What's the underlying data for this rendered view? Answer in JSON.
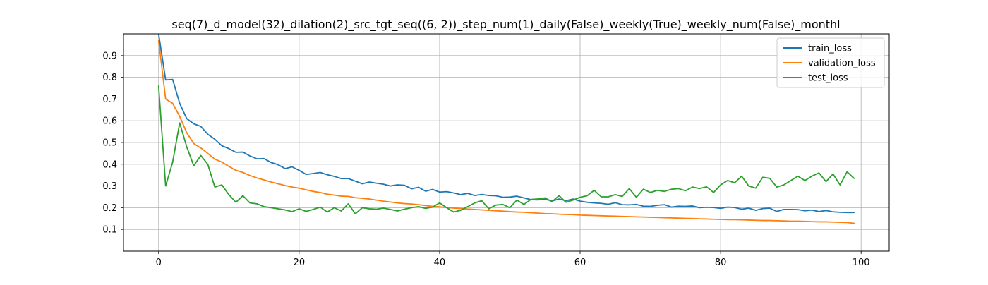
{
  "chart_data": {
    "type": "line",
    "title": "seq(7)_d_model(32)_dilation(2)_src_tgt_seq((6, 2))_step_num(1)_daily(False)_weekly(True)_weekly_num(False)_monthl",
    "xlabel": "",
    "ylabel": "",
    "xlim": [
      -5,
      104
    ],
    "ylim": [
      0,
      1.0
    ],
    "xticks": [
      0,
      20,
      40,
      60,
      80,
      100
    ],
    "yticks": [
      0.1,
      0.2,
      0.3,
      0.4,
      0.5,
      0.6,
      0.7,
      0.8,
      0.9
    ],
    "grid": true,
    "legend_position": "top-right",
    "colors": {
      "train_loss": "#1f77b4",
      "validation_loss": "#ff7f0e",
      "test_loss": "#2ca02c"
    },
    "series": [
      {
        "name": "train_loss",
        "x": [
          0,
          1,
          2,
          3,
          4,
          5,
          6,
          7,
          8,
          9,
          10,
          11,
          12,
          13,
          14,
          15,
          16,
          17,
          18,
          19,
          20,
          21,
          22,
          23,
          24,
          25,
          26,
          27,
          28,
          29,
          30,
          31,
          32,
          33,
          34,
          35,
          36,
          37,
          38,
          39,
          40,
          41,
          42,
          43,
          44,
          45,
          46,
          47,
          48,
          49,
          50,
          51,
          52,
          53,
          54,
          55,
          56,
          57,
          58,
          59,
          60,
          61,
          62,
          63,
          64,
          65,
          66,
          67,
          68,
          69,
          70,
          71,
          72,
          73,
          74,
          75,
          76,
          77,
          78,
          79,
          80,
          81,
          82,
          83,
          84,
          85,
          86,
          87,
          88,
          89,
          90,
          91,
          92,
          93,
          94,
          95,
          96,
          97,
          98,
          99
        ],
        "values": [
          1.0,
          0.788,
          0.79,
          0.68,
          0.61,
          0.586,
          0.574,
          0.538,
          0.515,
          0.485,
          0.472,
          0.455,
          0.456,
          0.438,
          0.425,
          0.426,
          0.408,
          0.398,
          0.38,
          0.388,
          0.372,
          0.353,
          0.357,
          0.362,
          0.352,
          0.344,
          0.334,
          0.334,
          0.322,
          0.31,
          0.318,
          0.313,
          0.308,
          0.3,
          0.305,
          0.303,
          0.287,
          0.294,
          0.276,
          0.284,
          0.272,
          0.274,
          0.268,
          0.26,
          0.266,
          0.256,
          0.261,
          0.256,
          0.255,
          0.248,
          0.249,
          0.253,
          0.245,
          0.237,
          0.236,
          0.239,
          0.231,
          0.24,
          0.232,
          0.24,
          0.23,
          0.225,
          0.222,
          0.22,
          0.216,
          0.223,
          0.214,
          0.213,
          0.215,
          0.207,
          0.206,
          0.211,
          0.214,
          0.203,
          0.207,
          0.206,
          0.208,
          0.2,
          0.202,
          0.201,
          0.197,
          0.203,
          0.201,
          0.193,
          0.198,
          0.188,
          0.196,
          0.198,
          0.183,
          0.192,
          0.192,
          0.191,
          0.186,
          0.189,
          0.182,
          0.187,
          0.181,
          0.179,
          0.178,
          0.178
        ]
      },
      {
        "name": "validation_loss",
        "x": [
          0,
          1,
          2,
          3,
          4,
          5,
          6,
          7,
          8,
          9,
          10,
          11,
          12,
          13,
          14,
          15,
          16,
          17,
          18,
          19,
          20,
          21,
          22,
          23,
          24,
          25,
          26,
          27,
          28,
          29,
          30,
          31,
          32,
          33,
          34,
          35,
          36,
          37,
          38,
          39,
          40,
          41,
          42,
          43,
          44,
          45,
          46,
          47,
          48,
          49,
          50,
          51,
          52,
          53,
          54,
          55,
          56,
          57,
          58,
          59,
          60,
          61,
          62,
          63,
          64,
          65,
          66,
          67,
          68,
          69,
          70,
          71,
          72,
          73,
          74,
          75,
          76,
          77,
          78,
          79,
          80,
          81,
          82,
          83,
          84,
          85,
          86,
          87,
          88,
          89,
          90,
          91,
          92,
          93,
          94,
          95,
          96,
          97,
          98,
          99
        ],
        "values": [
          0.97,
          0.7,
          0.68,
          0.62,
          0.545,
          0.495,
          0.475,
          0.45,
          0.423,
          0.41,
          0.39,
          0.372,
          0.362,
          0.348,
          0.337,
          0.328,
          0.318,
          0.31,
          0.302,
          0.295,
          0.29,
          0.282,
          0.275,
          0.27,
          0.262,
          0.258,
          0.253,
          0.252,
          0.246,
          0.243,
          0.24,
          0.235,
          0.23,
          0.226,
          0.222,
          0.219,
          0.217,
          0.214,
          0.21,
          0.206,
          0.204,
          0.201,
          0.198,
          0.196,
          0.194,
          0.192,
          0.19,
          0.188,
          0.186,
          0.184,
          0.182,
          0.18,
          0.179,
          0.177,
          0.175,
          0.173,
          0.172,
          0.17,
          0.169,
          0.168,
          0.166,
          0.165,
          0.164,
          0.163,
          0.162,
          0.161,
          0.16,
          0.159,
          0.158,
          0.157,
          0.156,
          0.155,
          0.154,
          0.153,
          0.152,
          0.151,
          0.15,
          0.149,
          0.148,
          0.147,
          0.146,
          0.145,
          0.145,
          0.144,
          0.143,
          0.142,
          0.141,
          0.141,
          0.14,
          0.139,
          0.138,
          0.138,
          0.137,
          0.136,
          0.135,
          0.135,
          0.134,
          0.133,
          0.132,
          0.128
        ]
      },
      {
        "name": "test_loss",
        "x": [
          0,
          1,
          2,
          3,
          4,
          5,
          6,
          7,
          8,
          9,
          10,
          11,
          12,
          13,
          14,
          15,
          16,
          17,
          18,
          19,
          20,
          21,
          22,
          23,
          24,
          25,
          26,
          27,
          28,
          29,
          30,
          31,
          32,
          33,
          34,
          35,
          36,
          37,
          38,
          39,
          40,
          41,
          42,
          43,
          44,
          45,
          46,
          47,
          48,
          49,
          50,
          51,
          52,
          53,
          54,
          55,
          56,
          57,
          58,
          59,
          60,
          61,
          62,
          63,
          64,
          65,
          66,
          67,
          68,
          69,
          70,
          71,
          72,
          73,
          74,
          75,
          76,
          77,
          78,
          79,
          80,
          81,
          82,
          83,
          84,
          85,
          86,
          87,
          88,
          89,
          90,
          91,
          92,
          93,
          94,
          95,
          96,
          97,
          98,
          99
        ],
        "values": [
          0.76,
          0.3,
          0.41,
          0.59,
          0.48,
          0.393,
          0.44,
          0.4,
          0.295,
          0.305,
          0.26,
          0.225,
          0.255,
          0.222,
          0.218,
          0.205,
          0.2,
          0.195,
          0.19,
          0.182,
          0.195,
          0.183,
          0.192,
          0.203,
          0.18,
          0.2,
          0.185,
          0.218,
          0.172,
          0.2,
          0.195,
          0.193,
          0.198,
          0.192,
          0.185,
          0.193,
          0.2,
          0.205,
          0.197,
          0.203,
          0.222,
          0.2,
          0.18,
          0.188,
          0.205,
          0.222,
          0.232,
          0.195,
          0.212,
          0.215,
          0.2,
          0.235,
          0.215,
          0.238,
          0.24,
          0.245,
          0.228,
          0.255,
          0.225,
          0.235,
          0.248,
          0.255,
          0.28,
          0.25,
          0.25,
          0.26,
          0.252,
          0.288,
          0.248,
          0.285,
          0.27,
          0.28,
          0.275,
          0.285,
          0.288,
          0.278,
          0.295,
          0.288,
          0.296,
          0.27,
          0.305,
          0.325,
          0.315,
          0.345,
          0.3,
          0.29,
          0.34,
          0.335,
          0.295,
          0.305,
          0.325,
          0.345,
          0.325,
          0.345,
          0.36,
          0.32,
          0.355,
          0.305,
          0.365,
          0.335
        ]
      }
    ]
  }
}
